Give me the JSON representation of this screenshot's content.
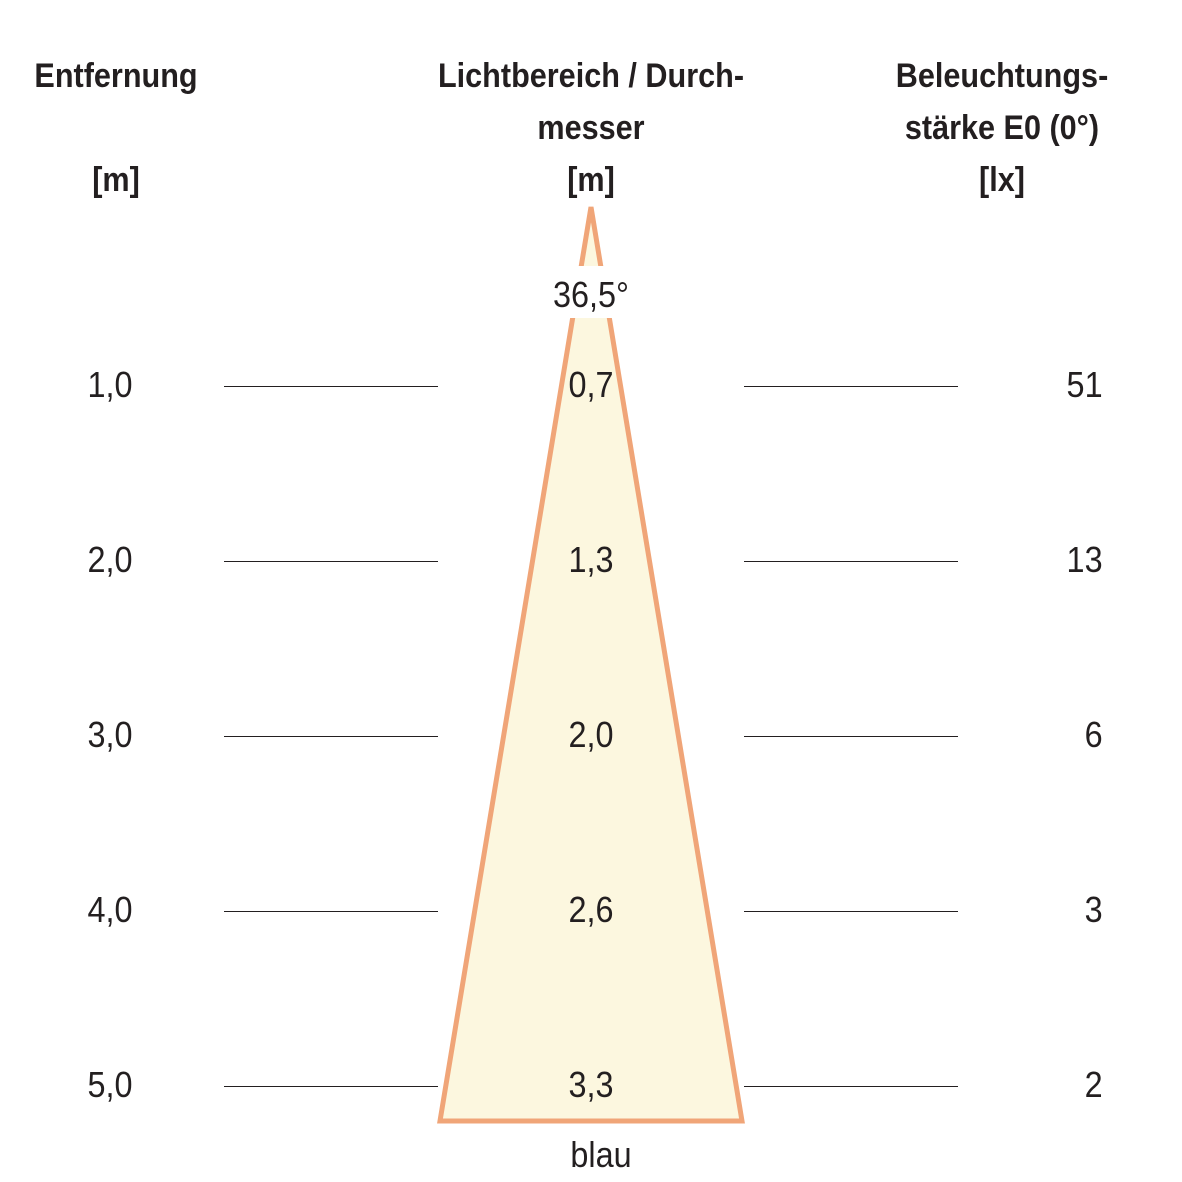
{
  "headers": {
    "distance": {
      "title": "Entfernung",
      "unit": "[m]"
    },
    "diameter": {
      "title_line1": "Lichtbereich / Durch-",
      "title_line2": "messer",
      "unit": "[m]"
    },
    "illuminance": {
      "title_line1": "Beleuchtungs-",
      "title_line2": "stärke E0 (0°)",
      "unit": "[lx]"
    }
  },
  "beam_angle": "36,5°",
  "rows": [
    {
      "distance": "1,0",
      "diameter": "0,7",
      "lux": "51"
    },
    {
      "distance": "2,0",
      "diameter": "1,3",
      "lux": "13"
    },
    {
      "distance": "3,0",
      "diameter": "2,0",
      "lux": "6"
    },
    {
      "distance": "4,0",
      "diameter": "2,6",
      "lux": "3"
    },
    {
      "distance": "5,0",
      "diameter": "3,3",
      "lux": "2"
    }
  ],
  "caption": "blau",
  "colors": {
    "cone_stroke": "#f0a578",
    "cone_fill": "#fcf7df"
  }
}
